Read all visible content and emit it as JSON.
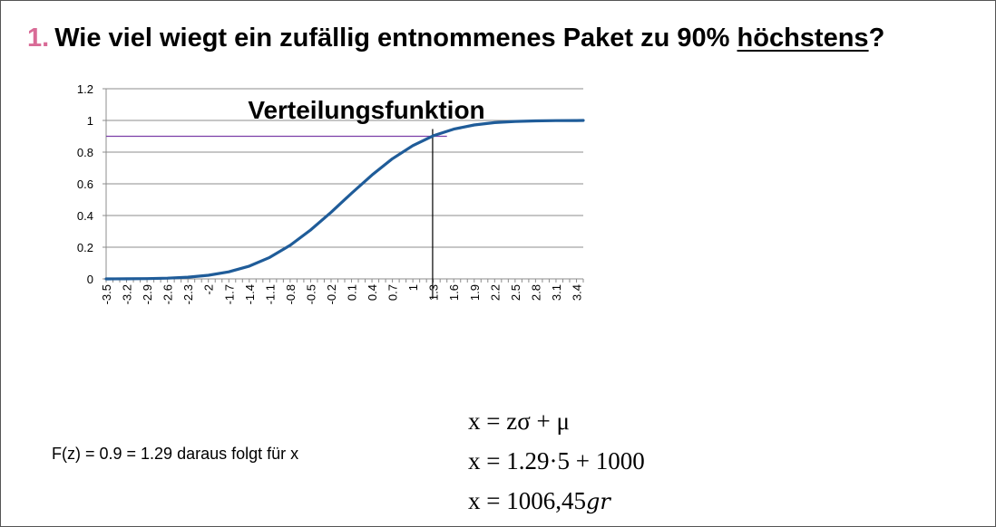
{
  "question": {
    "number": "1.",
    "text_before": "Wie viel wiegt ein zufällig entnommenes Paket zu 90% ",
    "underlined": "höchstens",
    "text_after": "?"
  },
  "chart_data": {
    "type": "line",
    "title": "Verteilungsfunktion",
    "xlabel": "",
    "ylabel": "",
    "ylim": [
      0,
      1.2
    ],
    "yticks": [
      "0",
      "0.2",
      "0.4",
      "0.6",
      "0.8",
      "1",
      "1.2"
    ],
    "xticks": [
      "-3.5",
      "-3.2",
      "-2.9",
      "-2.6",
      "-2.3",
      "-2",
      "-1.7",
      "-1.4",
      "-1.1",
      "-0.8",
      "-0.5",
      "-0.2",
      "0.1",
      "0.4",
      "0.7",
      "1",
      "1.3",
      "1.6",
      "1.9",
      "2.2",
      "2.5",
      "2.8",
      "3.1",
      "3.4"
    ],
    "x_range": [
      -3.5,
      3.5
    ],
    "grid": true,
    "series": [
      {
        "color": "#1f5c99",
        "points": [
          [
            -3.5,
            0.0002
          ],
          [
            -3.2,
            0.0007
          ],
          [
            -2.9,
            0.0019
          ],
          [
            -2.6,
            0.0047
          ],
          [
            -2.3,
            0.0107
          ],
          [
            -2.0,
            0.0228
          ],
          [
            -1.7,
            0.0446
          ],
          [
            -1.4,
            0.0808
          ],
          [
            -1.1,
            0.1357
          ],
          [
            -0.8,
            0.2119
          ],
          [
            -0.5,
            0.3085
          ],
          [
            -0.2,
            0.4207
          ],
          [
            0.1,
            0.5398
          ],
          [
            0.4,
            0.6554
          ],
          [
            0.7,
            0.758
          ],
          [
            1.0,
            0.8413
          ],
          [
            1.3,
            0.9032
          ],
          [
            1.6,
            0.9452
          ],
          [
            1.9,
            0.9713
          ],
          [
            2.2,
            0.9861
          ],
          [
            2.5,
            0.9938
          ],
          [
            2.8,
            0.9974
          ],
          [
            3.1,
            0.999
          ],
          [
            3.4,
            0.9997
          ],
          [
            3.5,
            0.9998
          ]
        ]
      }
    ],
    "reference_lines": {
      "horizontal_y": 0.9,
      "horizontal_color": "#7b3fa8",
      "vertical_x": 1.29,
      "vertical_color": "#000000"
    }
  },
  "explanation": "F(z) = 0.9 = 1.29  daraus folgt für x",
  "formulas": {
    "line1": "x = zσ + μ",
    "line2": "x = 1.29·5 + 1000",
    "line3_value": "x = 1006,45",
    "line3_unit": "gr"
  }
}
